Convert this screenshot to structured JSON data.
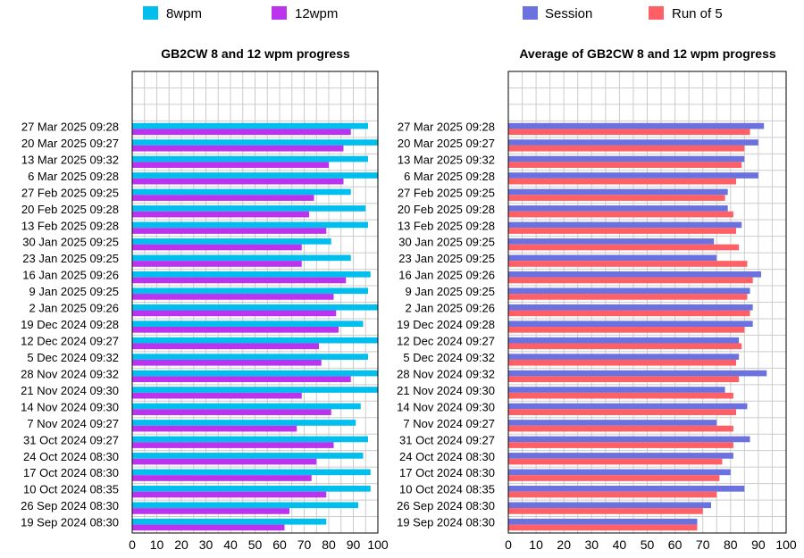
{
  "chart_data": [
    {
      "type": "bar",
      "orientation": "horizontal",
      "title": "GB2CW 8 and 12 wpm progress",
      "xlabel": "",
      "ylabel": "",
      "xlim": [
        0,
        100
      ],
      "xticks": [
        0,
        10,
        20,
        30,
        40,
        50,
        60,
        70,
        80,
        90,
        100
      ],
      "grid": true,
      "legend": "top",
      "categories": [
        "27 Mar 2025 09:28",
        "20 Mar 2025 09:27",
        "13 Mar 2025 09:32",
        "6 Mar 2025 09:28",
        "27 Feb 2025 09:25",
        "20 Feb 2025 09:28",
        "13 Feb 2025 09:28",
        "30 Jan 2025 09:25",
        "23 Jan 2025 09:25",
        "16 Jan 2025 09:26",
        "9 Jan 2025 09:25",
        "2 Jan 2025 09:26",
        "19 Dec 2024 09:28",
        "12 Dec 2024 09:27",
        "5 Dec 2024 09:32",
        "28 Nov 2024 09:32",
        "21 Nov 2024 09:30",
        "14 Nov 2024 09:30",
        "7 Nov 2024 09:27",
        "31 Oct 2024 09:27",
        "24 Oct 2024 08:30",
        "17 Oct 2024 08:30",
        "10 Oct 2024 08:35",
        "26 Sep 2024 08:30",
        "19 Sep 2024 08:30"
      ],
      "series": [
        {
          "name": "8wpm",
          "color": "#00bfee",
          "values": [
            96,
            100,
            96,
            100,
            89,
            95,
            96,
            81,
            89,
            97,
            96,
            100,
            94,
            100,
            96,
            100,
            100,
            93,
            91,
            96,
            94,
            97,
            97,
            92,
            79
          ]
        },
        {
          "name": "12wpm",
          "color": "#bb33ee",
          "values": [
            89,
            86,
            80,
            86,
            74,
            72,
            79,
            69,
            69,
            87,
            82,
            83,
            84,
            76,
            77,
            89,
            69,
            81,
            67,
            82,
            75,
            73,
            79,
            64,
            62
          ]
        }
      ]
    },
    {
      "type": "bar",
      "orientation": "horizontal",
      "title": "Average of GB2CW 8 and 12 wpm progress",
      "xlabel": "",
      "ylabel": "",
      "xlim": [
        0,
        100
      ],
      "xticks": [
        0,
        10,
        20,
        30,
        40,
        50,
        60,
        70,
        80,
        90,
        100
      ],
      "grid": true,
      "legend": "top",
      "categories": [
        "27 Mar 2025 09:28",
        "20 Mar 2025 09:27",
        "13 Mar 2025 09:32",
        "6 Mar 2025 09:28",
        "27 Feb 2025 09:25",
        "20 Feb 2025 09:28",
        "13 Feb 2025 09:28",
        "30 Jan 2025 09:25",
        "23 Jan 2025 09:25",
        "16 Jan 2025 09:26",
        "9 Jan 2025 09:25",
        "2 Jan 2025 09:26",
        "19 Dec 2024 09:28",
        "12 Dec 2024 09:27",
        "5 Dec 2024 09:32",
        "28 Nov 2024 09:32",
        "21 Nov 2024 09:30",
        "14 Nov 2024 09:30",
        "7 Nov 2024 09:27",
        "31 Oct 2024 09:27",
        "24 Oct 2024 08:30",
        "17 Oct 2024 08:30",
        "10 Oct 2024 08:35",
        "26 Sep 2024 08:30",
        "19 Sep 2024 08:30"
      ],
      "series": [
        {
          "name": "Session",
          "color": "#6b72e0",
          "values": [
            92,
            90,
            85,
            90,
            79,
            79,
            84,
            74,
            75,
            91,
            87,
            88,
            88,
            83,
            83,
            93,
            78,
            86,
            75,
            87,
            81,
            80,
            85,
            73,
            68
          ]
        },
        {
          "name": "Run of 5",
          "color": "#ff6066",
          "values": [
            87,
            85,
            84,
            82,
            78,
            81,
            82,
            83,
            86,
            88,
            86,
            87,
            85,
            84,
            82,
            83,
            81,
            82,
            81,
            81,
            77,
            76,
            75,
            70,
            68
          ]
        }
      ]
    }
  ]
}
